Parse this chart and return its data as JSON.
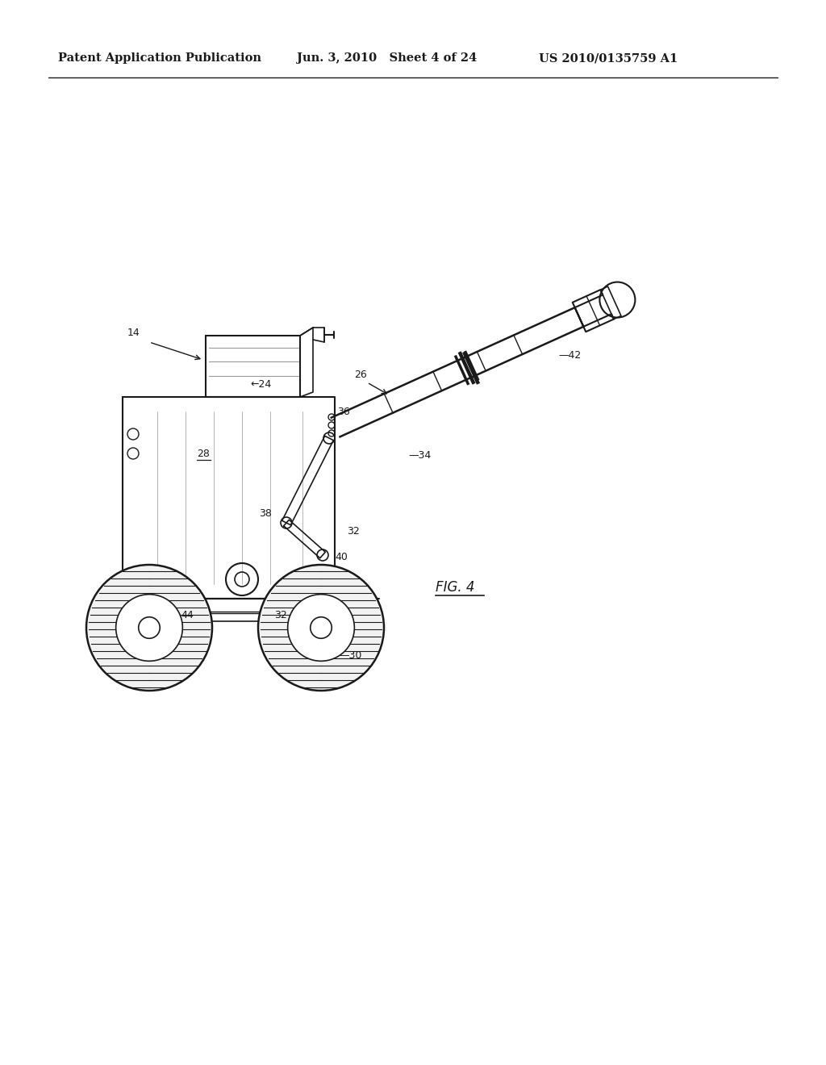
{
  "bg_color": "#ffffff",
  "line_color": "#1a1a1a",
  "header_left": "Patent Application Publication",
  "header_mid": "Jun. 3, 2010   Sheet 4 of 24",
  "header_right": "US 2010/0135759 A1",
  "fig_label": "FIG. 4"
}
